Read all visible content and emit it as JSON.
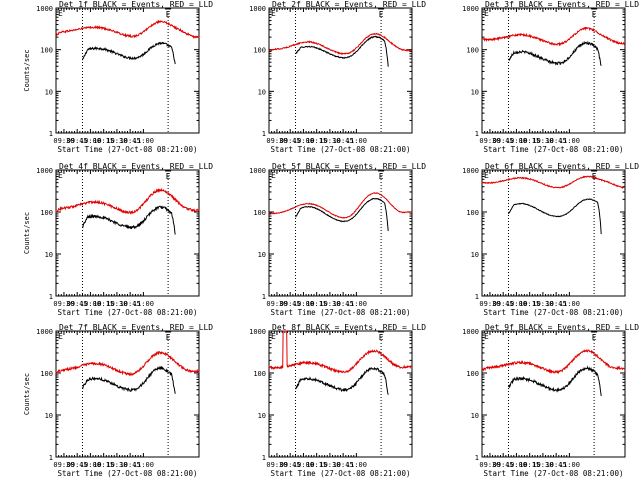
{
  "figure": {
    "colors": {
      "events": "#000000",
      "lld": "#e00000",
      "background": "#ffffff",
      "axis": "#000000"
    }
  },
  "chart_data": [
    {
      "type": "line",
      "panel": "Det 1f",
      "title": "Det 1f BLACK = Events, RED = LLD",
      "ylabel": "Counts/sec",
      "xlabel": "Start Time (27-Oct-08 08:21:00)",
      "x_ticks": [
        "09:30",
        "09:45",
        "10:00",
        "10:15",
        "10:30",
        "10:45",
        "11:00"
      ],
      "y_ticks": [
        "1",
        "10",
        "100",
        "1000"
      ],
      "ylim": [
        1,
        1000
      ],
      "yscale": "log",
      "xlim_minutes": [
        0,
        162
      ],
      "event_marks": [
        {
          "label": "E",
          "x_minutes": 127
        }
      ],
      "dotted_lines_minutes": [
        30,
        127
      ],
      "series": [
        {
          "name": "Events",
          "color": "black",
          "start": 30,
          "end": 135,
          "profile": "two_hump",
          "params": {
            "start_val": 55,
            "base": 80,
            "bump1_amp": 30,
            "bump1_center": 48,
            "bump1_width": 15,
            "dip_center": 90,
            "peak_amp": 70,
            "peak_center": 118,
            "peak_width": 11,
            "end_drop": 45,
            "noise": 0.06
          }
        },
        {
          "name": "LLD",
          "color": "red",
          "start": 0,
          "end": 162,
          "profile": "two_hump",
          "params": {
            "start_val": 230,
            "base": 260,
            "bump1_amp": 90,
            "bump1_center": 45,
            "bump1_width": 18,
            "dip_center": 90,
            "peak_amp": 230,
            "peak_center": 118,
            "peak_width": 12,
            "end_drop": 0,
            "tail": 200,
            "noise": 0.05
          }
        }
      ]
    },
    {
      "type": "line",
      "panel": "Det 2f",
      "title": "Det 2f BLACK = Events, RED = LLD",
      "ylabel": "",
      "xlabel": "Start Time (27-Oct-08 08:21:00)",
      "x_ticks": [
        "09:30",
        "09:45",
        "10:00",
        "10:15",
        "10:30",
        "10:45",
        "11:00"
      ],
      "y_ticks": [
        "1",
        "10",
        "100",
        "1000"
      ],
      "ylim": [
        1,
        1000
      ],
      "yscale": "log",
      "xlim_minutes": [
        0,
        162
      ],
      "event_marks": [
        {
          "label": "E",
          "x_minutes": 127
        }
      ],
      "dotted_lines_minutes": [
        30,
        127
      ],
      "series": [
        {
          "name": "Events",
          "color": "black",
          "start": 30,
          "end": 135,
          "profile": "two_hump",
          "params": {
            "start_val": 80,
            "base": 80,
            "bump1_amp": 40,
            "bump1_center": 45,
            "bump1_width": 15,
            "dip_center": 90,
            "peak_amp": 130,
            "peak_center": 120,
            "peak_width": 12,
            "end_drop": 40,
            "noise": 0.03
          }
        },
        {
          "name": "LLD",
          "color": "red",
          "start": 0,
          "end": 162,
          "profile": "two_hump",
          "params": {
            "start_val": 95,
            "base": 100,
            "bump1_amp": 55,
            "bump1_center": 45,
            "bump1_width": 15,
            "dip_center": 90,
            "peak_amp": 150,
            "peak_center": 120,
            "peak_width": 12,
            "end_drop": 0,
            "tail": 95,
            "noise": 0.03
          }
        }
      ]
    },
    {
      "type": "line",
      "panel": "Det 3f",
      "title": "Det 3f BLACK = Events, RED = LLD",
      "ylabel": "",
      "xlabel": "Start Time (27-Oct-08 08:21:00)",
      "x_ticks": [
        "09:30",
        "09:45",
        "10:00",
        "10:15",
        "10:30",
        "10:45",
        "11:00"
      ],
      "y_ticks": [
        "1",
        "10",
        "100",
        "1000"
      ],
      "ylim": [
        1,
        1000
      ],
      "yscale": "log",
      "xlim_minutes": [
        0,
        162
      ],
      "event_marks": [
        {
          "label": "E",
          "x_minutes": 127
        }
      ],
      "dotted_lines_minutes": [
        30,
        127
      ],
      "series": [
        {
          "name": "Events",
          "color": "black",
          "start": 30,
          "end": 135,
          "profile": "two_hump",
          "params": {
            "start_val": 55,
            "base": 60,
            "bump1_amp": 30,
            "bump1_center": 45,
            "bump1_width": 15,
            "dip_center": 90,
            "peak_amp": 90,
            "peak_center": 118,
            "peak_width": 11,
            "end_drop": 40,
            "noise": 0.07
          }
        },
        {
          "name": "LLD",
          "color": "red",
          "start": 0,
          "end": 162,
          "profile": "two_hump",
          "params": {
            "start_val": 180,
            "base": 170,
            "bump1_amp": 60,
            "bump1_center": 45,
            "bump1_width": 16,
            "dip_center": 90,
            "peak_amp": 170,
            "peak_center": 118,
            "peak_width": 12,
            "end_drop": 0,
            "tail": 140,
            "noise": 0.05
          }
        }
      ]
    },
    {
      "type": "line",
      "panel": "Det 4f",
      "title": "Det 4f BLACK = Events, RED = LLD",
      "ylabel": "Counts/sec",
      "xlabel": "Start Time (27-Oct-08 08:21:00)",
      "x_ticks": [
        "09:30",
        "09:45",
        "10:00",
        "10:15",
        "10:30",
        "10:45",
        "11:00"
      ],
      "y_ticks": [
        "1",
        "10",
        "100",
        "1000"
      ],
      "ylim": [
        1,
        1000
      ],
      "yscale": "log",
      "xlim_minutes": [
        0,
        162
      ],
      "event_marks": [
        {
          "label": "E",
          "x_minutes": 127
        }
      ],
      "dotted_lines_minutes": [
        30,
        127
      ],
      "series": [
        {
          "name": "Events",
          "color": "black",
          "start": 30,
          "end": 135,
          "profile": "two_hump",
          "params": {
            "start_val": 45,
            "base": 55,
            "bump1_amp": 25,
            "bump1_center": 45,
            "bump1_width": 15,
            "dip_center": 90,
            "peak_amp": 80,
            "peak_center": 118,
            "peak_width": 11,
            "end_drop": 30,
            "noise": 0.07
          }
        },
        {
          "name": "LLD",
          "color": "red",
          "start": 0,
          "end": 162,
          "profile": "two_hump",
          "params": {
            "start_val": 105,
            "base": 120,
            "bump1_amp": 55,
            "bump1_center": 45,
            "bump1_width": 16,
            "dip_center": 90,
            "peak_amp": 220,
            "peak_center": 118,
            "peak_width": 12,
            "end_drop": 0,
            "tail": 110,
            "noise": 0.06
          }
        }
      ]
    },
    {
      "type": "line",
      "panel": "Det 5f",
      "title": "Det 5f BLACK = Events, RED = LLD",
      "ylabel": "",
      "xlabel": "Start Time (27-Oct-08 08:21:00)",
      "x_ticks": [
        "09:30",
        "09:45",
        "10:00",
        "10:15",
        "10:30",
        "10:45",
        "11:00"
      ],
      "y_ticks": [
        "1",
        "10",
        "100",
        "1000"
      ],
      "ylim": [
        1,
        1000
      ],
      "yscale": "log",
      "xlim_minutes": [
        0,
        162
      ],
      "event_marks": [
        {
          "label": "E",
          "x_minutes": 127
        }
      ],
      "dotted_lines_minutes": [
        30,
        127
      ],
      "series": [
        {
          "name": "Events",
          "color": "black",
          "start": 30,
          "end": 135,
          "profile": "two_hump",
          "params": {
            "start_val": 75,
            "base": 75,
            "bump1_amp": 60,
            "bump1_center": 45,
            "bump1_width": 14,
            "dip_center": 90,
            "peak_amp": 140,
            "peak_center": 120,
            "peak_width": 12,
            "end_drop": 35,
            "noise": 0.02
          }
        },
        {
          "name": "LLD",
          "color": "red",
          "start": 0,
          "end": 162,
          "profile": "two_hump",
          "params": {
            "start_val": 95,
            "base": 90,
            "bump1_amp": 70,
            "bump1_center": 45,
            "bump1_width": 15,
            "dip_center": 90,
            "peak_amp": 200,
            "peak_center": 120,
            "peak_width": 12,
            "end_drop": 0,
            "tail": 100,
            "noise": 0.02
          }
        }
      ]
    },
    {
      "type": "line",
      "panel": "Det 6f",
      "title": "Det 6f BLACK = Events, RED = LLD",
      "ylabel": "",
      "xlabel": "Start Time (27-Oct-08 08:21:00)",
      "x_ticks": [
        "09:30",
        "09:45",
        "10:00",
        "10:15",
        "10:30",
        "10:45",
        "11:00"
      ],
      "y_ticks": [
        "1",
        "10",
        "100",
        "1000"
      ],
      "ylim": [
        1,
        1000
      ],
      "yscale": "log",
      "xlim_minutes": [
        0,
        162
      ],
      "event_marks": [
        {
          "label": "E",
          "x_minutes": 127
        }
      ],
      "dotted_lines_minutes": [
        30,
        127
      ],
      "series": [
        {
          "name": "Events",
          "color": "black",
          "start": 30,
          "end": 135,
          "profile": "two_hump",
          "params": {
            "start_val": 90,
            "base": 100,
            "bump1_amp": 60,
            "bump1_center": 45,
            "bump1_width": 14,
            "dip_center": 90,
            "peak_amp": 110,
            "peak_center": 120,
            "peak_width": 12,
            "end_drop": 30,
            "noise": 0.02
          }
        },
        {
          "name": "LLD",
          "color": "red",
          "start": 0,
          "end": 162,
          "profile": "two_hump",
          "params": {
            "start_val": 500,
            "base": 480,
            "bump1_amp": 180,
            "bump1_center": 45,
            "bump1_width": 16,
            "dip_center": 90,
            "peak_amp": 260,
            "peak_center": 118,
            "peak_width": 13,
            "end_drop": 0,
            "tail": 380,
            "noise": 0.03
          }
        }
      ]
    },
    {
      "type": "line",
      "panel": "Det 7f",
      "title": "Det 7f BLACK = Events, RED = LLD",
      "ylabel": "Counts/sec",
      "xlabel": "Start Time (27-Oct-08 08:21:00)",
      "x_ticks": [
        "09:30",
        "09:45",
        "10:00",
        "10:15",
        "10:30",
        "10:45",
        "11:00"
      ],
      "y_ticks": [
        "1",
        "10",
        "100",
        "1000"
      ],
      "ylim": [
        1,
        1000
      ],
      "yscale": "log",
      "xlim_minutes": [
        0,
        162
      ],
      "event_marks": [
        {
          "label": "E",
          "x_minutes": 127
        }
      ],
      "dotted_lines_minutes": [
        30,
        127
      ],
      "series": [
        {
          "name": "Events",
          "color": "black",
          "start": 30,
          "end": 135,
          "profile": "two_hump",
          "params": {
            "start_val": 45,
            "base": 50,
            "bump1_amp": 25,
            "bump1_center": 45,
            "bump1_width": 15,
            "dip_center": 90,
            "peak_amp": 85,
            "peak_center": 118,
            "peak_width": 11,
            "end_drop": 30,
            "noise": 0.07
          }
        },
        {
          "name": "LLD",
          "color": "red",
          "start": 0,
          "end": 162,
          "profile": "two_hump",
          "params": {
            "start_val": 105,
            "base": 115,
            "bump1_amp": 55,
            "bump1_center": 45,
            "bump1_width": 16,
            "dip_center": 90,
            "peak_amp": 200,
            "peak_center": 118,
            "peak_width": 12,
            "end_drop": 0,
            "tail": 110,
            "noise": 0.06
          }
        }
      ]
    },
    {
      "type": "line",
      "panel": "Det 8f",
      "title": "Det 8f BLACK = Events, RED = LLD",
      "ylabel": "",
      "xlabel": "Start Time (27-Oct-08 08:21:00)",
      "x_ticks": [
        "09:30",
        "09:45",
        "10:00",
        "10:15",
        "10:30",
        "10:45",
        "11:00"
      ],
      "y_ticks": [
        "1",
        "10",
        "100",
        "1000"
      ],
      "ylim": [
        1,
        1000
      ],
      "yscale": "log",
      "xlim_minutes": [
        0,
        162
      ],
      "event_marks": [
        {
          "label": "E",
          "x_minutes": 127
        }
      ],
      "dotted_lines_minutes": [
        30,
        127
      ],
      "series": [
        {
          "name": "Events",
          "color": "black",
          "start": 30,
          "end": 135,
          "profile": "two_hump",
          "params": {
            "start_val": 40,
            "base": 50,
            "bump1_amp": 25,
            "bump1_center": 45,
            "bump1_width": 15,
            "dip_center": 90,
            "peak_amp": 85,
            "peak_center": 118,
            "peak_width": 11,
            "end_drop": 30,
            "noise": 0.07
          }
        },
        {
          "name": "LLD",
          "color": "red",
          "start": 0,
          "end": 162,
          "profile": "two_hump",
          "params": {
            "start_val": 140,
            "base": 130,
            "bump1_amp": 50,
            "bump1_center": 45,
            "bump1_width": 16,
            "dip_center": 90,
            "peak_amp": 220,
            "peak_center": 118,
            "peak_width": 12,
            "end_drop": 0,
            "tail": 140,
            "noise": 0.06,
            "spike_start": 16,
            "spike_end": 20,
            "spike_val": 1000
          }
        }
      ]
    },
    {
      "type": "line",
      "panel": "Det 9f",
      "title": "Det 9f BLACK = Events, RED = LLD",
      "ylabel": "",
      "xlabel": "Start Time (27-Oct-08 08:21:00)",
      "x_ticks": [
        "09:30",
        "09:45",
        "10:00",
        "10:15",
        "10:30",
        "10:45",
        "11:00"
      ],
      "y_ticks": [
        "1",
        "10",
        "100",
        "1000"
      ],
      "ylim": [
        1,
        1000
      ],
      "yscale": "log",
      "xlim_minutes": [
        0,
        162
      ],
      "event_marks": [
        {
          "label": "E",
          "x_minutes": 127
        }
      ],
      "dotted_lines_minutes": [
        30,
        127
      ],
      "series": [
        {
          "name": "Events",
          "color": "black",
          "start": 30,
          "end": 135,
          "profile": "two_hump",
          "params": {
            "start_val": 45,
            "base": 50,
            "bump1_amp": 25,
            "bump1_center": 45,
            "bump1_width": 15,
            "dip_center": 90,
            "peak_amp": 85,
            "peak_center": 118,
            "peak_width": 11,
            "end_drop": 30,
            "noise": 0.07
          }
        },
        {
          "name": "LLD",
          "color": "red",
          "start": 0,
          "end": 162,
          "profile": "two_hump",
          "params": {
            "start_val": 120,
            "base": 130,
            "bump1_amp": 50,
            "bump1_center": 45,
            "bump1_width": 16,
            "dip_center": 90,
            "peak_amp": 220,
            "peak_center": 118,
            "peak_width": 12,
            "end_drop": 0,
            "tail": 130,
            "noise": 0.06
          }
        }
      ]
    }
  ]
}
